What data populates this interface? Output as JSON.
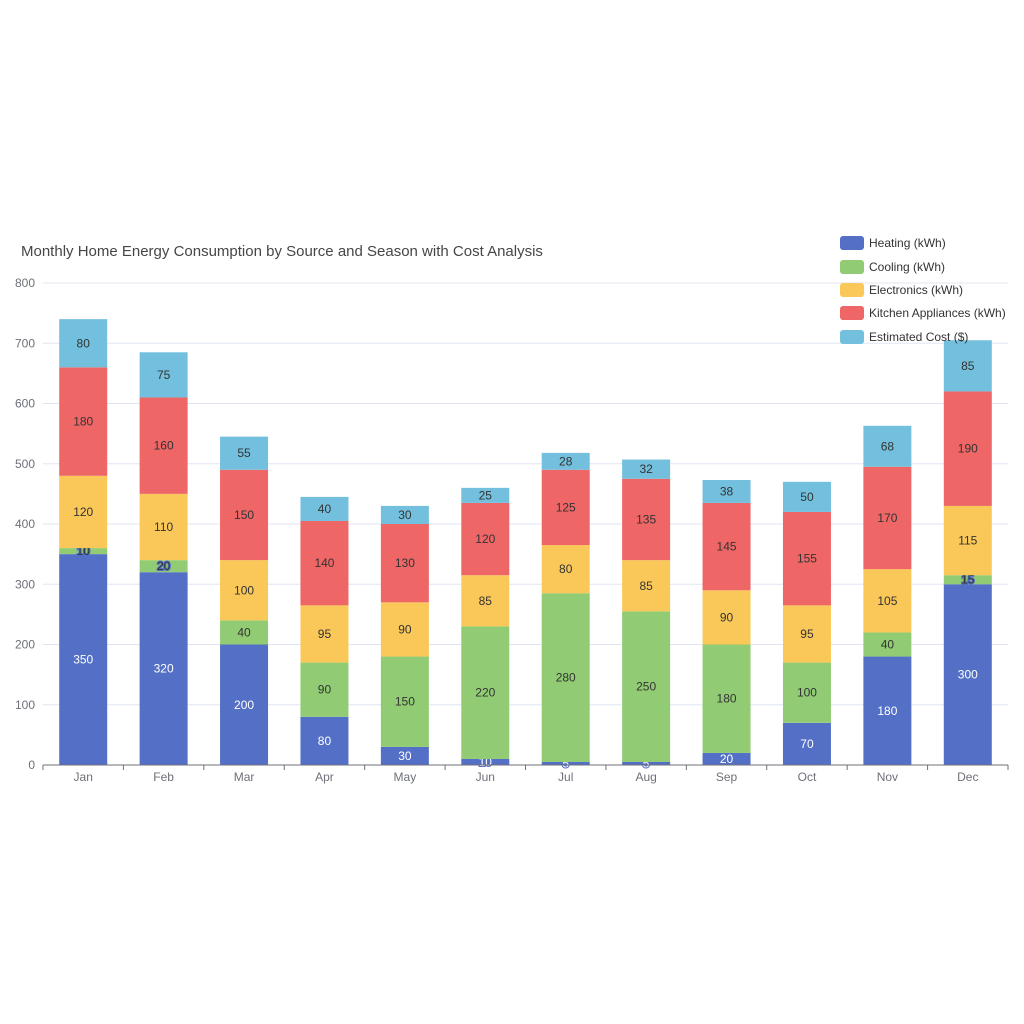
{
  "chart_data": {
    "type": "bar",
    "stacked": true,
    "title": "Monthly Home Energy Consumption by Source and Season with Cost Analysis",
    "xlabel": "",
    "ylabel": "",
    "ylim": [
      0,
      800
    ],
    "yticks": [
      0,
      100,
      200,
      300,
      400,
      500,
      600,
      700,
      800
    ],
    "grid": true,
    "legend_position": "top-right",
    "categories": [
      "Jan",
      "Feb",
      "Mar",
      "Apr",
      "May",
      "Jun",
      "Jul",
      "Aug",
      "Sep",
      "Oct",
      "Nov",
      "Dec"
    ],
    "series": [
      {
        "name": "Heating (kWh)",
        "color": "#5470c6",
        "label_color": "#ffffff",
        "values": [
          350,
          320,
          200,
          80,
          30,
          10,
          5,
          5,
          20,
          70,
          180,
          300
        ]
      },
      {
        "name": "Cooling (kWh)",
        "color": "#91cc75",
        "label_color": "#333333",
        "values": [
          10,
          20,
          40,
          90,
          150,
          220,
          280,
          250,
          180,
          100,
          40,
          15
        ]
      },
      {
        "name": "Electronics (kWh)",
        "color": "#fac858",
        "label_color": "#333333",
        "values": [
          120,
          110,
          100,
          95,
          90,
          85,
          80,
          85,
          90,
          95,
          105,
          115
        ]
      },
      {
        "name": "Kitchen Appliances (kWh)",
        "color": "#ee6666",
        "label_color": "#333333",
        "values": [
          180,
          160,
          150,
          140,
          130,
          120,
          125,
          135,
          145,
          155,
          170,
          190
        ]
      },
      {
        "name": "Estimated Cost ($)",
        "color": "#73c0de",
        "label_color": "#333333",
        "values": [
          80,
          75,
          55,
          40,
          30,
          25,
          28,
          32,
          38,
          50,
          68,
          85
        ]
      }
    ]
  }
}
